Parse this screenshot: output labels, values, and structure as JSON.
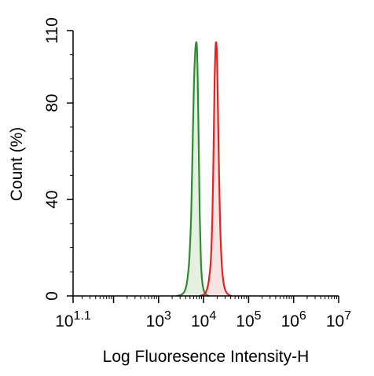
{
  "chart_data": {
    "type": "area",
    "xscale": "log",
    "xlabel": "Log Fluoresence Intensity-H",
    "ylabel": "Count  (%)",
    "xlim": [
      12.6,
      10000000
    ],
    "ylim": [
      0,
      110
    ],
    "grid": false,
    "x_tick_labels": [
      {
        "value": 12.6,
        "base": "10",
        "exp": "1.1"
      },
      {
        "value": 1000,
        "base": "10",
        "exp": "3"
      },
      {
        "value": 10000,
        "base": "10",
        "exp": "4"
      },
      {
        "value": 100000,
        "base": "10",
        "exp": "5"
      },
      {
        "value": 1000000,
        "base": "10",
        "exp": "6"
      },
      {
        "value": 10000000,
        "base": "10",
        "exp": "7"
      }
    ],
    "y_ticks": [
      0,
      40,
      80,
      110
    ],
    "series": [
      {
        "color": "#2e8b2e",
        "fill": "#dcebd8",
        "x": [
          2500,
          3200,
          3800,
          4300,
          4800,
          5300,
          5700,
          6100,
          6500,
          6800,
          7100,
          7400,
          7800,
          8200,
          8700,
          9300,
          10200,
          11500,
          13000
        ],
        "y": [
          0,
          0.5,
          2,
          6,
          15,
          34,
          62,
          88,
          101,
          105,
          103,
          90,
          62,
          34,
          15,
          6,
          2,
          0.5,
          0
        ]
      },
      {
        "color": "#e32222",
        "fill": "#f6dada",
        "x": [
          8000,
          10000,
          11500,
          13000,
          14500,
          15700,
          16700,
          17500,
          18200,
          18800,
          19500,
          20300,
          21500,
          23000,
          25000,
          27500,
          31000,
          36000,
          42000
        ],
        "y": [
          0,
          0.5,
          2,
          6,
          15,
          34,
          62,
          88,
          101,
          105,
          103,
          90,
          62,
          34,
          15,
          6,
          2,
          0.5,
          0
        ]
      }
    ]
  }
}
